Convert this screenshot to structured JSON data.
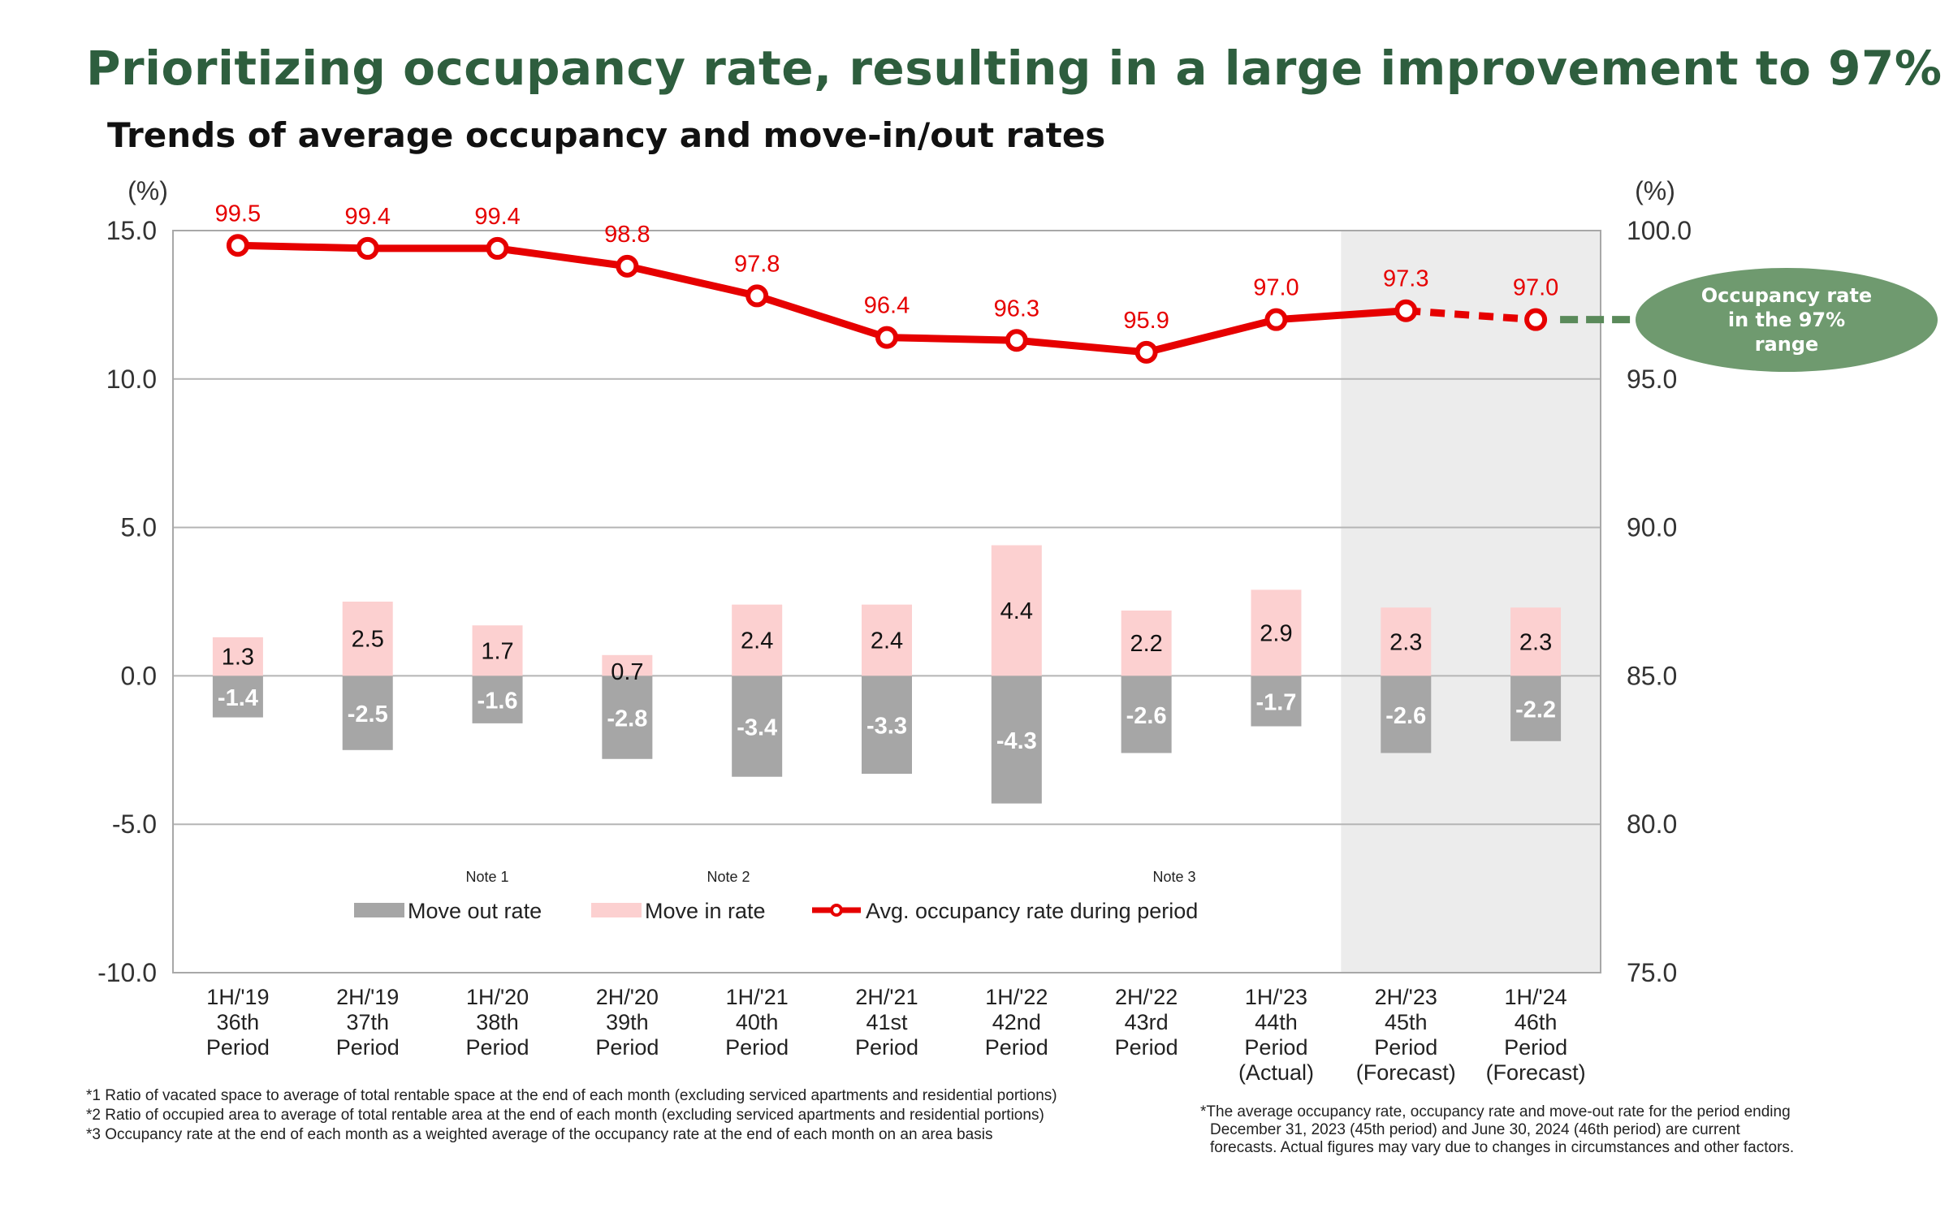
{
  "title": "Prioritizing occupancy rate, resulting in a large improvement to 97%",
  "chart_data": {
    "type": "bar",
    "subtitle": "Trends of average occupancy and move-in/out rates",
    "left_axis": {
      "unit": "(%)",
      "min": -10,
      "max": 15,
      "ticks": [
        "15.0",
        "10.0",
        "5.0",
        "0.0",
        "-5.0",
        "-10.0"
      ]
    },
    "right_axis": {
      "unit": "(%)",
      "min": 75,
      "max": 100,
      "ticks": [
        "100.0",
        "95.0",
        "90.0",
        "85.0",
        "80.0",
        "75.0"
      ]
    },
    "categories": [
      [
        "1H/'19",
        "36th",
        "Period"
      ],
      [
        "2H/'19",
        "37th",
        "Period"
      ],
      [
        "1H/'20",
        "38th",
        "Period"
      ],
      [
        "2H/'20",
        "39th",
        "Period"
      ],
      [
        "1H/'21",
        "40th",
        "Period"
      ],
      [
        "2H/'21",
        "41st",
        "Period"
      ],
      [
        "1H/'22",
        "42nd",
        "Period"
      ],
      [
        "2H/'22",
        "43rd",
        "Period"
      ],
      [
        "1H/'23",
        "44th",
        "Period",
        "(Actual)"
      ],
      [
        "2H/'23",
        "45th",
        "Period",
        "(Forecast)"
      ],
      [
        "1H/'24",
        "46th",
        "Period",
        "(Forecast)"
      ]
    ],
    "series": [
      {
        "name": "Move out rate",
        "axis": "left",
        "kind": "bar",
        "color": "#a6a6a6",
        "values": [
          -1.4,
          -2.5,
          -1.6,
          -2.8,
          -3.4,
          -3.3,
          -4.3,
          -2.6,
          -1.7,
          -2.6,
          -2.2
        ],
        "labels": [
          "-1.4",
          "-2.5",
          "-1.6",
          "-2.8",
          "-3.4",
          "-3.3",
          "-4.3",
          "-2.6",
          "-1.7",
          "-2.6",
          "-2.2"
        ]
      },
      {
        "name": "Move in rate",
        "axis": "left",
        "kind": "bar",
        "color": "#fcd0d0",
        "values": [
          1.3,
          2.5,
          1.7,
          0.7,
          2.4,
          2.4,
          4.4,
          2.2,
          2.9,
          2.3,
          2.3
        ],
        "labels": [
          "1.3",
          "2.5",
          "1.7",
          "0.7",
          "2.4",
          "2.4",
          "4.4",
          "2.2",
          "2.9",
          "2.3",
          "2.3"
        ]
      },
      {
        "name": "Avg. occupancy rate during period",
        "axis": "right",
        "kind": "line",
        "color": "#e60000",
        "values": [
          99.5,
          99.4,
          99.4,
          98.8,
          97.8,
          96.4,
          96.3,
          95.9,
          97.0,
          97.3,
          97.0
        ],
        "labels": [
          "99.5",
          "99.4",
          "99.4",
          "98.8",
          "97.8",
          "96.4",
          "96.3",
          "95.9",
          "97.0",
          "97.3",
          "97.0"
        ]
      }
    ],
    "forecast_from_index": 9,
    "notes": [
      "Note 1",
      "Note 2",
      "Note 3"
    ],
    "callout": [
      "Occupancy rate",
      "in the 97%",
      "range"
    ],
    "legend_position": "bottom-center",
    "grid": true
  },
  "footnotes_left": [
    "*1 Ratio of vacated space to average of total rentable space at the end of each month (excluding serviced apartments and residential portions)",
    "*2 Ratio of occupied area to average of total rentable area at the end of each month (excluding serviced apartments and residential portions)",
    "*3 Occupancy rate at the end of each month as a weighted average of the occupancy rate at the end of each month on an area basis"
  ],
  "footnotes_right": [
    "*The average occupancy rate, occupancy rate and move-out rate for the period ending",
    "December 31, 2023 (45th period)  and June 30, 2024 (46th period) are current",
    "forecasts.  Actual figures may vary due to changes in circumstances and other factors."
  ],
  "colors": {
    "title": "#2e5e3e",
    "occupancy": "#e60000",
    "move_in": "#fcd0d0",
    "move_out": "#a6a6a6",
    "forecast_shade": "#ececec",
    "callout": "#6f9a6f"
  }
}
